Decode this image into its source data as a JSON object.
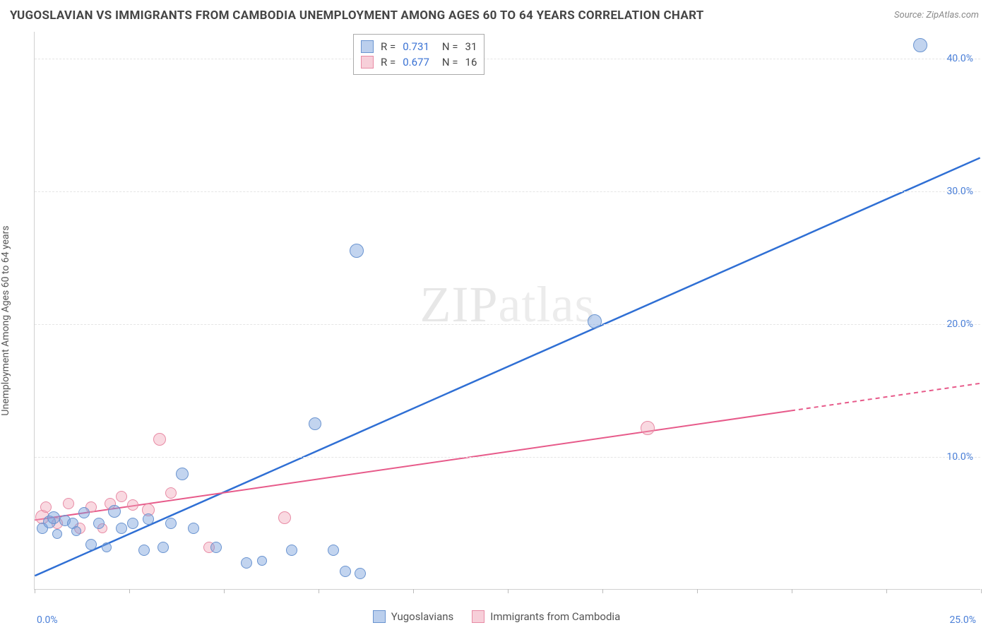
{
  "title": "YUGOSLAVIAN VS IMMIGRANTS FROM CAMBODIA UNEMPLOYMENT AMONG AGES 60 TO 64 YEARS CORRELATION CHART",
  "source": "Source: ZipAtlas.com",
  "y_axis_label": "Unemployment Among Ages 60 to 64 years",
  "watermark_a": "ZIP",
  "watermark_b": "atlas",
  "chart": {
    "type": "scatter",
    "xlim": [
      0,
      25
    ],
    "ylim": [
      0,
      42
    ],
    "x_ticks": [
      0,
      2.5,
      5,
      7.5,
      10,
      12.5,
      15,
      17.5,
      20,
      22.5,
      25
    ],
    "x_tick_labels_shown": {
      "first": "0.0%",
      "last": "25.0%"
    },
    "y_gridlines": [
      10,
      20,
      30,
      40
    ],
    "y_tick_labels": [
      "10.0%",
      "20.0%",
      "30.0%",
      "40.0%"
    ],
    "background_color": "#ffffff",
    "grid_color": "#e5e5e5",
    "axis_color": "#d0d0d0",
    "tick_label_color": "#4a7fd8",
    "series": {
      "blue": {
        "label": "Yugoslavians",
        "color_fill": "rgba(120,160,220,0.45)",
        "color_stroke": "#6a94d0",
        "line_color": "#2f6fd4",
        "line_width": 2.5,
        "R": "0.731",
        "N": "31",
        "trend": {
          "x1": 0,
          "y1": 1.0,
          "x2": 25,
          "y2": 32.5,
          "dash_from_x": null
        },
        "points": [
          {
            "x": 0.2,
            "y": 4.6,
            "r": 8
          },
          {
            "x": 0.4,
            "y": 5.1,
            "r": 9
          },
          {
            "x": 0.5,
            "y": 5.4,
            "r": 9
          },
          {
            "x": 0.6,
            "y": 4.2,
            "r": 7
          },
          {
            "x": 0.8,
            "y": 5.2,
            "r": 8
          },
          {
            "x": 1.0,
            "y": 5.0,
            "r": 8
          },
          {
            "x": 1.1,
            "y": 4.4,
            "r": 7
          },
          {
            "x": 1.3,
            "y": 5.8,
            "r": 8
          },
          {
            "x": 1.5,
            "y": 3.4,
            "r": 8
          },
          {
            "x": 1.7,
            "y": 5.0,
            "r": 8
          },
          {
            "x": 1.9,
            "y": 3.2,
            "r": 7
          },
          {
            "x": 2.1,
            "y": 5.9,
            "r": 9
          },
          {
            "x": 2.3,
            "y": 4.6,
            "r": 8
          },
          {
            "x": 2.6,
            "y": 5.0,
            "r": 8
          },
          {
            "x": 2.9,
            "y": 3.0,
            "r": 8
          },
          {
            "x": 3.0,
            "y": 5.3,
            "r": 8
          },
          {
            "x": 3.4,
            "y": 3.2,
            "r": 8
          },
          {
            "x": 3.6,
            "y": 5.0,
            "r": 8
          },
          {
            "x": 3.9,
            "y": 8.7,
            "r": 9
          },
          {
            "x": 4.2,
            "y": 4.6,
            "r": 8
          },
          {
            "x": 4.8,
            "y": 3.2,
            "r": 8
          },
          {
            "x": 5.6,
            "y": 2.0,
            "r": 8
          },
          {
            "x": 6.0,
            "y": 2.2,
            "r": 7
          },
          {
            "x": 6.8,
            "y": 3.0,
            "r": 8
          },
          {
            "x": 7.4,
            "y": 12.5,
            "r": 9
          },
          {
            "x": 7.9,
            "y": 3.0,
            "r": 8
          },
          {
            "x": 8.2,
            "y": 1.4,
            "r": 8
          },
          {
            "x": 8.6,
            "y": 1.2,
            "r": 8
          },
          {
            "x": 8.5,
            "y": 25.5,
            "r": 10
          },
          {
            "x": 14.8,
            "y": 20.2,
            "r": 10
          },
          {
            "x": 23.4,
            "y": 41.0,
            "r": 10
          }
        ]
      },
      "pink": {
        "label": "Immigrants from Cambodia",
        "color_fill": "rgba(240,160,180,0.4)",
        "color_stroke": "#e88ba5",
        "line_color": "#e75a8a",
        "line_width": 2,
        "R": "0.677",
        "N": "16",
        "trend": {
          "x1": 0,
          "y1": 5.2,
          "x2": 25,
          "y2": 15.5,
          "dash_from_x": 20
        },
        "points": [
          {
            "x": 0.2,
            "y": 5.5,
            "r": 10
          },
          {
            "x": 0.3,
            "y": 6.2,
            "r": 8
          },
          {
            "x": 0.6,
            "y": 5.0,
            "r": 8
          },
          {
            "x": 0.9,
            "y": 6.5,
            "r": 8
          },
          {
            "x": 1.2,
            "y": 4.6,
            "r": 8
          },
          {
            "x": 1.5,
            "y": 6.2,
            "r": 8
          },
          {
            "x": 1.8,
            "y": 4.6,
            "r": 7
          },
          {
            "x": 2.0,
            "y": 6.5,
            "r": 8
          },
          {
            "x": 2.3,
            "y": 7.0,
            "r": 8
          },
          {
            "x": 2.6,
            "y": 6.4,
            "r": 8
          },
          {
            "x": 3.0,
            "y": 6.0,
            "r": 9
          },
          {
            "x": 3.3,
            "y": 11.3,
            "r": 9
          },
          {
            "x": 3.6,
            "y": 7.3,
            "r": 8
          },
          {
            "x": 4.6,
            "y": 3.2,
            "r": 8
          },
          {
            "x": 6.6,
            "y": 5.4,
            "r": 9
          },
          {
            "x": 16.2,
            "y": 12.2,
            "r": 10
          }
        ]
      }
    }
  },
  "stats_box": {
    "rows": [
      {
        "swatch": "blue",
        "r_label": "R  =",
        "r_val": "0.731",
        "n_label": "N  =",
        "n_val": "31"
      },
      {
        "swatch": "pink",
        "r_label": "R  =",
        "r_val": "0.677",
        "n_label": "N  =",
        "n_val": "16"
      }
    ]
  },
  "bottom_legend": [
    {
      "swatch": "blue",
      "label": "Yugoslavians"
    },
    {
      "swatch": "pink",
      "label": "Immigrants from Cambodia"
    }
  ]
}
